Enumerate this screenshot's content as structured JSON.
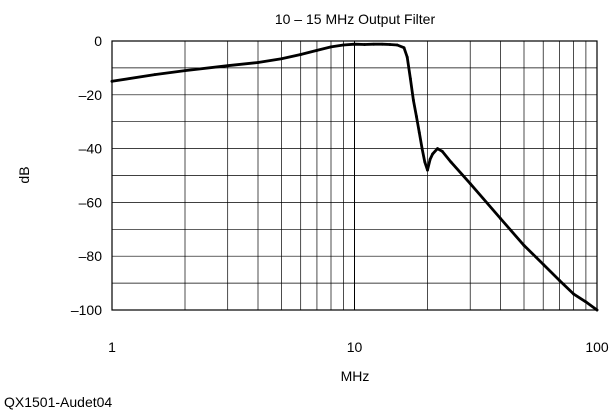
{
  "chart_data": {
    "type": "line",
    "title": "10 – 15 MHz Output Filter",
    "xlabel": "MHz",
    "ylabel": "dB",
    "x_scale": "log",
    "xlim": [
      1,
      100
    ],
    "ylim": [
      -100,
      0
    ],
    "x_ticks": [
      "1",
      "10",
      "100"
    ],
    "y_ticks": [
      "0",
      "–20",
      "–40",
      "–60",
      "–80",
      "–100"
    ],
    "grid": true,
    "series": [
      {
        "x": [
          1,
          1.5,
          2,
          3,
          4,
          5,
          6,
          7,
          8,
          9,
          10,
          11,
          12,
          13,
          14,
          15,
          16,
          16.5,
          17,
          17.5,
          18,
          18.5,
          19,
          19.5,
          20,
          20.5,
          21,
          22,
          23,
          25,
          30,
          40,
          50,
          60,
          70,
          80,
          90,
          100
        ],
        "y": [
          -15,
          -12.5,
          -11,
          -9.2,
          -8,
          -6.6,
          -5,
          -3.5,
          -2.2,
          -1.5,
          -1.2,
          -1.3,
          -1.2,
          -1.2,
          -1.3,
          -1.5,
          -2.5,
          -6,
          -14,
          -22,
          -28,
          -34,
          -40,
          -45,
          -48,
          -44,
          -42,
          -40,
          -41,
          -45,
          -53,
          -66,
          -76,
          -83,
          -89,
          -94,
          -97,
          -100
        ]
      }
    ]
  },
  "credit": "QX1501-Audet04"
}
